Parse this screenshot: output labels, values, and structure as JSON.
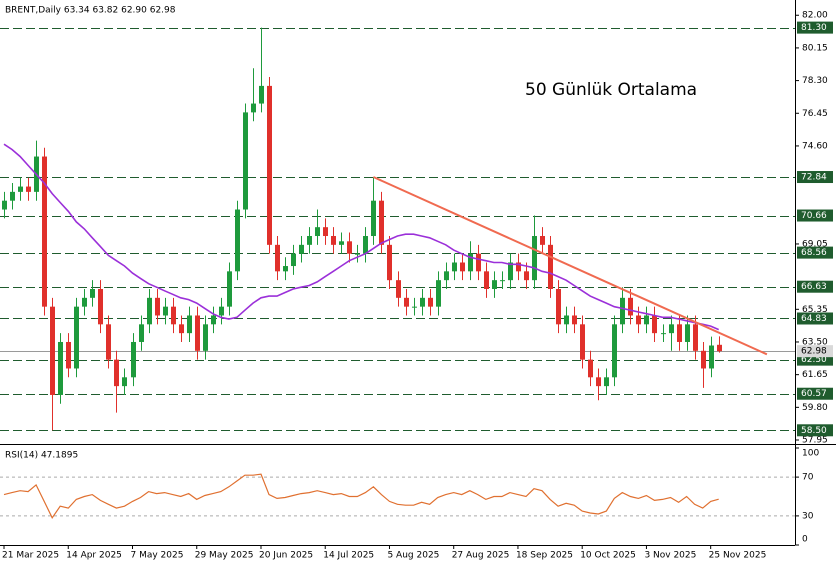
{
  "chart_data": {
    "type": "candlestick",
    "subtitle": "BRENT,Daily 63.34 63.82 62.90 62.98",
    "annotation": "50 Günlük Ortalama",
    "annotation_color": "#8e3fcf",
    "up_color": "#1e9a3c",
    "down_color": "#e0302b",
    "categories": [
      "21 Mar 2025",
      null,
      null,
      null,
      null,
      null,
      null,
      null,
      "14 Apr 2025",
      null,
      null,
      null,
      null,
      null,
      null,
      null,
      "7 May 2025",
      null,
      null,
      null,
      null,
      null,
      null,
      null,
      "29 May 2025",
      null,
      null,
      null,
      null,
      null,
      null,
      null,
      "20 Jun 2025",
      null,
      null,
      null,
      null,
      null,
      null,
      null,
      "14 Jul 2025",
      null,
      null,
      null,
      null,
      null,
      null,
      null,
      "5 Aug 2025",
      null,
      null,
      null,
      null,
      null,
      null,
      null,
      "27 Aug 2025",
      null,
      null,
      null,
      null,
      null,
      null,
      null,
      "18 Sep 2025",
      null,
      null,
      null,
      null,
      null,
      null,
      null,
      "10 Oct 2025",
      null,
      null,
      null,
      null,
      null,
      null,
      null,
      "3 Nov 2025",
      null,
      null,
      null,
      null,
      null,
      null,
      null,
      "25 Nov 2025",
      null
    ],
    "open": [
      71.0,
      71.5,
      72.0,
      72.3,
      72.0,
      74.0,
      65.5,
      60.5,
      63.5,
      62.0,
      65.5,
      66.0,
      66.5,
      64.5,
      62.5,
      61.0,
      61.5,
      63.5,
      64.5,
      66.0,
      65.0,
      65.5,
      64.5,
      64.0,
      65.0,
      63.0,
      64.5,
      65.0,
      65.5,
      67.5,
      71.0,
      76.5,
      77.0,
      78.0,
      69.0,
      67.5,
      67.8,
      68.5,
      69.0,
      69.5,
      70.0,
      69.5,
      69.0,
      69.2,
      68.5,
      68.5,
      69.5,
      71.5,
      69.0,
      67.0,
      66.0,
      65.5,
      65.5,
      66.0,
      65.5,
      67.0,
      67.5,
      68.0,
      67.5,
      68.5,
      67.5,
      66.5,
      67.0,
      67.0,
      68.0,
      67.5,
      67.0,
      69.5,
      69.0,
      66.5,
      64.5,
      65.0,
      64.5,
      62.5,
      61.5,
      61.0,
      61.5,
      64.5,
      66.0,
      65.0,
      64.5,
      65.0,
      64.0,
      64.0,
      64.5,
      63.5,
      64.5,
      63.0,
      62.0,
      63.34
    ],
    "high": [
      72.0,
      72.5,
      72.8,
      72.8,
      74.9,
      74.5,
      66.0,
      64.0,
      64.0,
      66.0,
      66.5,
      67.0,
      67.0,
      65.0,
      63.0,
      62.0,
      64.0,
      65.0,
      66.5,
      66.5,
      66.0,
      66.0,
      65.0,
      65.5,
      65.5,
      65.0,
      65.5,
      66.0,
      68.0,
      71.5,
      77.0,
      79.0,
      81.3,
      78.5,
      69.5,
      68.3,
      69.0,
      69.5,
      70.0,
      71.0,
      70.5,
      70.0,
      69.7,
      69.7,
      69.0,
      70.0,
      72.84,
      72.0,
      69.5,
      67.5,
      66.5,
      66.0,
      66.5,
      66.5,
      67.5,
      68.0,
      68.5,
      68.5,
      69.2,
      69.0,
      68.0,
      67.5,
      67.5,
      68.5,
      68.5,
      68.0,
      70.66,
      70.0,
      69.5,
      67.0,
      65.5,
      65.5,
      65.0,
      63.0,
      62.0,
      62.0,
      65.0,
      66.6,
      66.5,
      65.5,
      65.5,
      65.5,
      64.5,
      65.0,
      65.0,
      65.0,
      65.0,
      63.5,
      63.8,
      63.82
    ],
    "low": [
      70.5,
      71.0,
      71.5,
      71.5,
      71.5,
      65.0,
      58.5,
      60.0,
      61.5,
      61.5,
      65.0,
      65.5,
      64.0,
      62.0,
      59.5,
      60.5,
      61.0,
      63.0,
      64.0,
      64.5,
      64.5,
      64.0,
      63.5,
      63.5,
      62.5,
      62.5,
      64.0,
      64.5,
      65.0,
      67.0,
      70.5,
      76.0,
      76.5,
      68.5,
      67.0,
      67.0,
      67.3,
      68.0,
      68.5,
      69.0,
      69.0,
      68.5,
      68.5,
      68.0,
      68.0,
      68.0,
      69.0,
      68.5,
      66.5,
      65.5,
      65.0,
      65.0,
      65.0,
      65.0,
      65.0,
      66.5,
      67.0,
      67.0,
      67.0,
      67.0,
      66.0,
      66.0,
      66.5,
      66.5,
      67.0,
      66.5,
      66.5,
      68.5,
      66.0,
      64.0,
      64.0,
      64.0,
      62.0,
      61.0,
      60.2,
      60.5,
      61.0,
      64.0,
      64.5,
      64.0,
      64.0,
      63.5,
      63.5,
      63.0,
      63.0,
      63.0,
      62.5,
      60.9,
      61.5,
      62.9
    ],
    "close": [
      71.5,
      72.0,
      72.3,
      72.0,
      74.0,
      65.5,
      60.5,
      63.5,
      62.0,
      65.5,
      66.0,
      66.5,
      64.5,
      62.5,
      61.0,
      61.5,
      63.5,
      64.5,
      66.0,
      65.0,
      65.5,
      64.5,
      64.0,
      65.0,
      63.0,
      64.5,
      65.0,
      65.5,
      67.5,
      71.0,
      76.5,
      77.0,
      78.0,
      69.0,
      67.5,
      67.8,
      68.5,
      69.0,
      69.5,
      70.0,
      69.5,
      69.0,
      69.2,
      68.5,
      68.5,
      69.5,
      71.5,
      69.0,
      67.0,
      66.0,
      65.5,
      65.5,
      66.0,
      65.5,
      67.0,
      67.5,
      68.0,
      67.5,
      68.5,
      67.5,
      66.5,
      67.0,
      67.0,
      68.0,
      67.5,
      67.0,
      69.5,
      69.0,
      66.5,
      64.5,
      65.0,
      64.5,
      62.5,
      61.5,
      61.0,
      61.5,
      64.5,
      66.0,
      65.0,
      64.5,
      65.0,
      64.0,
      64.0,
      64.5,
      63.5,
      64.5,
      63.0,
      62.0,
      63.3,
      62.98
    ],
    "ma": {
      "color": "#9b30d9",
      "values": [
        74.7,
        74.4,
        74.0,
        73.5,
        73.0,
        72.5,
        71.9,
        71.4,
        70.9,
        70.3,
        69.9,
        69.4,
        68.9,
        68.4,
        68.1,
        67.8,
        67.4,
        67.1,
        66.8,
        66.6,
        66.4,
        66.2,
        66.0,
        65.9,
        65.7,
        65.4,
        65.1,
        64.9,
        64.8,
        64.9,
        65.3,
        65.7,
        66.0,
        66.1,
        66.1,
        66.3,
        66.5,
        66.6,
        66.7,
        66.9,
        67.2,
        67.5,
        67.8,
        68.1,
        68.3,
        68.5,
        68.8,
        69.1,
        69.3,
        69.5,
        69.6,
        69.6,
        69.5,
        69.4,
        69.2,
        69.0,
        68.7,
        68.5,
        68.3,
        68.2,
        68.1,
        68.0,
        68.0,
        67.9,
        67.9,
        67.8,
        67.7,
        67.5,
        67.4,
        67.2,
        67.0,
        66.7,
        66.4,
        66.1,
        65.9,
        65.7,
        65.5,
        65.4,
        65.3,
        65.2,
        65.1,
        65.0,
        64.9,
        64.9,
        64.8,
        64.7,
        64.6,
        64.5,
        64.4,
        64.2
      ]
    },
    "trendline": {
      "color": "#f06a50",
      "x": [
        46,
        95
      ],
      "y": [
        72.84,
        62.8
      ]
    },
    "xlim": [
      -0.5,
      98.5
    ],
    "ylim": [
      57.95,
      82.75
    ],
    "yticks": [
      {
        "value": 82,
        "label": "82.00"
      },
      {
        "value": 80.15,
        "label": "80.15"
      },
      {
        "value": 78.3,
        "label": "78.30"
      },
      {
        "value": 76.45,
        "label": "76.45"
      },
      {
        "value": 74.6,
        "label": "74.60"
      },
      {
        "value": 69.05,
        "label": "69.05"
      },
      {
        "value": 65.35,
        "label": "65.35"
      },
      {
        "value": 63.5,
        "label": "63.50"
      },
      {
        "value": 61.65,
        "label": "61.65"
      },
      {
        "value": 59.8,
        "label": "59.80"
      },
      {
        "value": 57.95,
        "label": "57.95"
      }
    ],
    "levels": [
      {
        "value": 81.3,
        "label": "81.30"
      },
      {
        "value": 72.84,
        "label": "72.84"
      },
      {
        "value": 70.66,
        "label": "70.66"
      },
      {
        "value": 68.56,
        "label": "68.56"
      },
      {
        "value": 66.63,
        "label": "66.63"
      },
      {
        "value": 64.83,
        "label": "64.83"
      },
      {
        "value": 62.5,
        "label": "62.50"
      },
      {
        "value": 60.57,
        "label": "60.57"
      },
      {
        "value": 58.5,
        "label": "58.50"
      }
    ],
    "level_color": "#1f5c2e",
    "current_price": {
      "value": 62.98,
      "label": "62.98"
    },
    "rsi": {
      "label": "RSI(14) 47.1895",
      "color": "#e07030",
      "ylim": [
        0,
        100
      ],
      "yticks": [
        100,
        70,
        30,
        0
      ],
      "levels": [
        70,
        30
      ],
      "values": [
        52,
        54,
        56,
        55,
        62,
        45,
        28,
        40,
        38,
        47,
        50,
        52,
        46,
        42,
        38,
        40,
        45,
        49,
        55,
        53,
        54,
        52,
        50,
        53,
        47,
        51,
        53,
        55,
        60,
        66,
        72,
        72,
        73,
        52,
        48,
        49,
        51,
        53,
        54,
        56,
        54,
        52,
        53,
        50,
        50,
        54,
        60,
        52,
        45,
        42,
        41,
        41,
        44,
        42,
        49,
        52,
        54,
        52,
        56,
        52,
        47,
        50,
        50,
        54,
        52,
        50,
        58,
        56,
        47,
        40,
        43,
        41,
        35,
        33,
        32,
        35,
        48,
        54,
        50,
        48,
        51,
        46,
        47,
        49,
        44,
        50,
        42,
        38,
        45,
        47.1895
      ]
    }
  }
}
